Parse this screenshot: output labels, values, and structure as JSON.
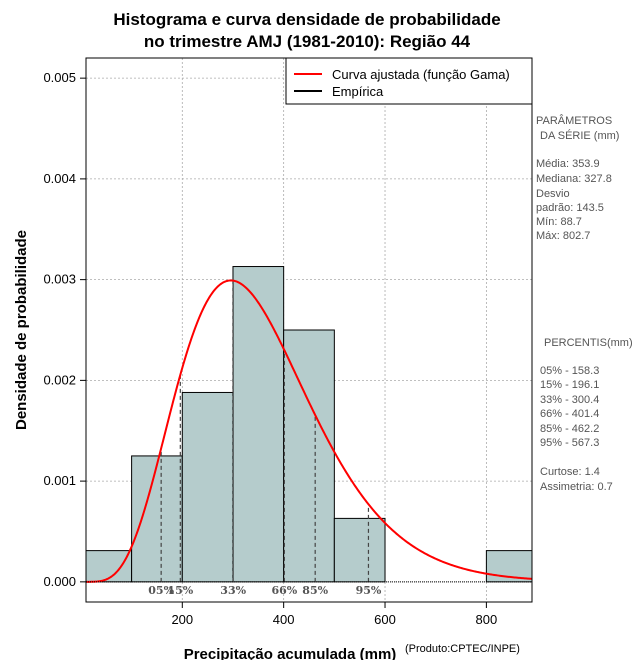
{
  "chart_data": {
    "type": "bar",
    "title_line1": "Histograma e curva densidade de probabilidade",
    "title_line2": "no trimestre AMJ (1981-2010): Região 44",
    "xlabel": "Precipitação acumulada (mm)",
    "ylabel": "Densidade de probabilidade",
    "credit": "(Produto:CPTEC/INPE)",
    "xlim": [
      10,
      890
    ],
    "ylim": [
      -0.0002,
      0.0052
    ],
    "x_ticks": [
      200,
      400,
      600,
      800
    ],
    "x_tick_labels": [
      "200",
      "400",
      "600",
      "800"
    ],
    "y_ticks": [
      0.0,
      0.001,
      0.002,
      0.003,
      0.004,
      0.005
    ],
    "y_tick_labels": [
      "0.000",
      "0.001",
      "0.002",
      "0.003",
      "0.004",
      "0.005"
    ],
    "grid": true,
    "bins": [
      {
        "start": 0,
        "end": 100,
        "density": 0.00031
      },
      {
        "start": 100,
        "end": 200,
        "density": 0.00125
      },
      {
        "start": 200,
        "end": 300,
        "density": 0.00188
      },
      {
        "start": 300,
        "end": 400,
        "density": 0.00313
      },
      {
        "start": 400,
        "end": 500,
        "density": 0.0025
      },
      {
        "start": 500,
        "end": 600,
        "density": 0.00063
      },
      {
        "start": 800,
        "end": 900,
        "density": 0.00031
      }
    ],
    "gamma_curve": {
      "name": "Curva ajustada (função Gama)",
      "mean": 353.9,
      "sd": 143.5,
      "color": "#ff0000"
    },
    "legend": [
      {
        "label": "Curva ajustada (função Gama)",
        "color": "#ff0000"
      },
      {
        "label": "Empírica",
        "color": "#000000"
      }
    ],
    "legend_position": "top-right",
    "percentile_lines": [
      {
        "label": "05%",
        "value": 158.3
      },
      {
        "label": "15%",
        "value": 196.1
      },
      {
        "label": "33%",
        "value": 300.4
      },
      {
        "label": "66%",
        "value": 401.4
      },
      {
        "label": "85%",
        "value": 462.2
      },
      {
        "label": "95%",
        "value": 567.3
      }
    ]
  },
  "side_panel": {
    "params_title_1": "PARÂMETROS",
    "params_title_2": "DA SÉRIE (mm)",
    "media": "Média:  353.9",
    "mediana": "Mediana:  327.8",
    "desvio_1": "Desvio",
    "desvio_2": "padrão:  143.5",
    "min": "Mín:  88.7",
    "max": "Máx:  802.7",
    "percentis_title": "PERCENTIS(mm)",
    "p05": "05% -  158.3",
    "p15": "15% -  196.1",
    "p33": "33% -  300.4",
    "p66": "66% -  401.4",
    "p85": "85% -  462.2",
    "p95": "95% -  567.3",
    "curtose": "Curtose:  1.4",
    "assimetria": "Assimetria:  0.7"
  },
  "colors": {
    "bar_fill": "#b5cccc",
    "curve": "#ff0000",
    "grid": "#aaaaaa"
  }
}
